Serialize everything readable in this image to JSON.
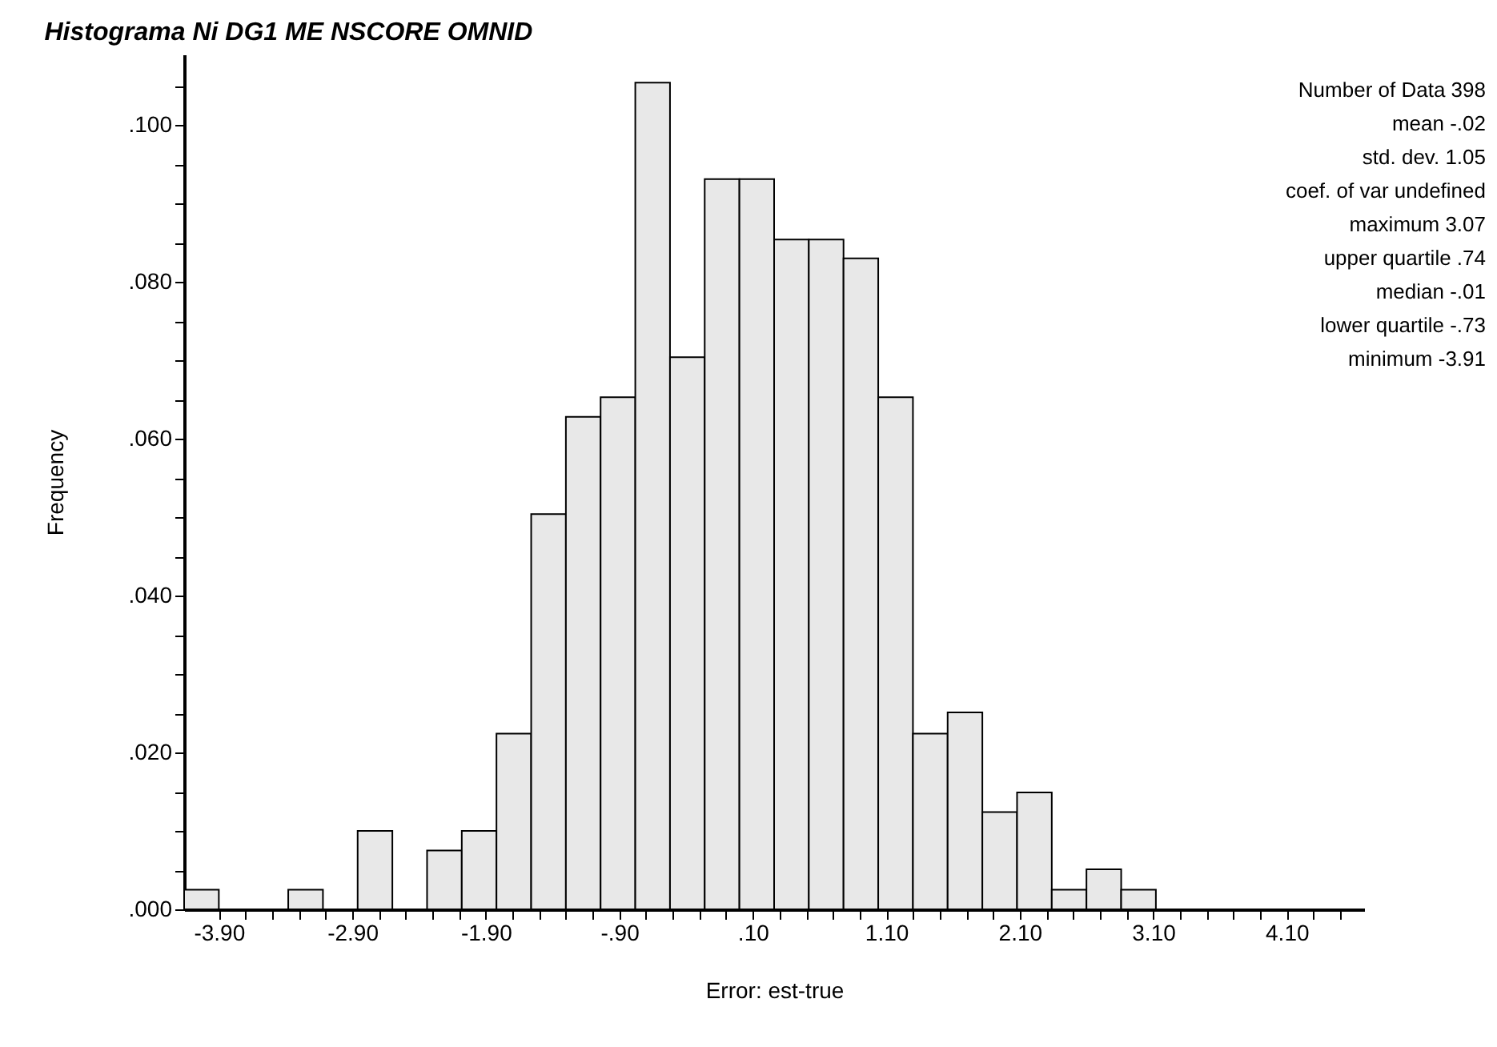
{
  "chart_data": {
    "type": "histogram",
    "title": "Histograma Ni DG1 ME NSCORE OMNID",
    "xlabel": "Error: est-true",
    "ylabel": "Frequency",
    "color": "#e8e8e8",
    "bins": [
      -4.16,
      -3.9,
      -3.64,
      -3.38,
      -3.12,
      -2.86,
      -2.6,
      -2.34,
      -2.08,
      -1.82,
      -1.56,
      -1.3,
      -1.04,
      -0.78,
      -0.52,
      -0.26,
      0,
      0.26,
      0.52,
      0.78,
      1.04,
      1.3,
      1.56,
      1.82,
      2.08,
      2.34,
      2.6,
      2.86,
      3.12
    ],
    "values": [
      0.0025,
      0,
      0,
      0.0025,
      0,
      0.01,
      0,
      0.0075,
      0.01,
      0.0224,
      0.0504,
      0.0628,
      0.0653,
      0.1054,
      0.0704,
      0.0931,
      0.0931,
      0.0854,
      0.0854,
      0.083,
      0.0653,
      0.0224,
      0.0251,
      0.0124,
      0.0149,
      0.0025,
      0.0051,
      0.0025
    ],
    "xlim": [
      -4.16,
      4.68
    ],
    "ylim": [
      0,
      0.109
    ],
    "xticks": [
      {
        "value": -3.9,
        "label": "-3.90"
      },
      {
        "value": -3.7,
        "label": null
      },
      {
        "value": -3.5,
        "label": null
      },
      {
        "value": -3.3,
        "label": null
      },
      {
        "value": -3.1,
        "label": null
      },
      {
        "value": -2.9,
        "label": "-2.90"
      },
      {
        "value": -2.7,
        "label": null
      },
      {
        "value": -2.5,
        "label": null
      },
      {
        "value": -2.3,
        "label": null
      },
      {
        "value": -2.1,
        "label": null
      },
      {
        "value": -1.9,
        "label": "-1.90"
      },
      {
        "value": -1.7,
        "label": null
      },
      {
        "value": -1.5,
        "label": null
      },
      {
        "value": -1.3,
        "label": null
      },
      {
        "value": -1.1,
        "label": null
      },
      {
        "value": -0.9,
        "label": "-.90"
      },
      {
        "value": -0.7,
        "label": null
      },
      {
        "value": -0.5,
        "label": null
      },
      {
        "value": -0.3,
        "label": null
      },
      {
        "value": -0.1,
        "label": null
      },
      {
        "value": 0.1,
        "label": ".10"
      },
      {
        "value": 0.3,
        "label": null
      },
      {
        "value": 0.5,
        "label": null
      },
      {
        "value": 0.7,
        "label": null
      },
      {
        "value": 0.9,
        "label": null
      },
      {
        "value": 1.1,
        "label": "1.10"
      },
      {
        "value": 1.3,
        "label": null
      },
      {
        "value": 1.5,
        "label": null
      },
      {
        "value": 1.7,
        "label": null
      },
      {
        "value": 1.9,
        "label": null
      },
      {
        "value": 2.1,
        "label": "2.10"
      },
      {
        "value": 2.3,
        "label": null
      },
      {
        "value": 2.5,
        "label": null
      },
      {
        "value": 2.7,
        "label": null
      },
      {
        "value": 2.9,
        "label": null
      },
      {
        "value": 3.1,
        "label": "3.10"
      },
      {
        "value": 3.3,
        "label": null
      },
      {
        "value": 3.5,
        "label": null
      },
      {
        "value": 3.7,
        "label": null
      },
      {
        "value": 3.9,
        "label": null
      },
      {
        "value": 4.1,
        "label": "4.10"
      },
      {
        "value": 4.3,
        "label": null
      },
      {
        "value": 4.5,
        "label": null
      }
    ],
    "yticks": [
      {
        "value": 0,
        "label": ".000"
      },
      {
        "value": 0.005,
        "label": null
      },
      {
        "value": 0.01,
        "label": null
      },
      {
        "value": 0.015,
        "label": null
      },
      {
        "value": 0.02,
        "label": ".020"
      },
      {
        "value": 0.025,
        "label": null
      },
      {
        "value": 0.03,
        "label": null
      },
      {
        "value": 0.035,
        "label": null
      },
      {
        "value": 0.04,
        "label": ".040"
      },
      {
        "value": 0.045,
        "label": null
      },
      {
        "value": 0.05,
        "label": null
      },
      {
        "value": 0.055,
        "label": null
      },
      {
        "value": 0.06,
        "label": ".060"
      },
      {
        "value": 0.065,
        "label": null
      },
      {
        "value": 0.07,
        "label": null
      },
      {
        "value": 0.075,
        "label": null
      },
      {
        "value": 0.08,
        "label": ".080"
      },
      {
        "value": 0.085,
        "label": null
      },
      {
        "value": 0.09,
        "label": null
      },
      {
        "value": 0.095,
        "label": null
      },
      {
        "value": 0.1,
        "label": ".100"
      },
      {
        "value": 0.105,
        "label": null
      }
    ],
    "grid": false,
    "annotations": [
      "Number of Data  398",
      "mean  -.02",
      "std. dev.  1.05",
      "coef. of var  undefined",
      "maximum  3.07",
      "upper quartile  .74",
      "median  -.01",
      "lower quartile  -.73",
      "minimum  -3.91"
    ]
  }
}
